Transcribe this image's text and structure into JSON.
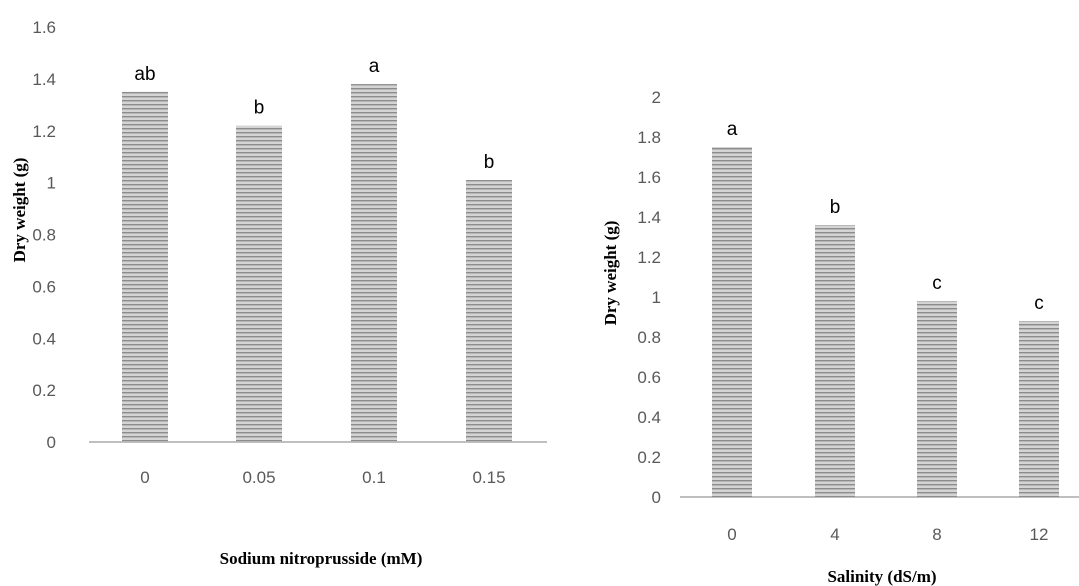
{
  "colors": {
    "bar_fill": "#d4d4d4",
    "bar_stripe": "#8c8c8c",
    "axis": "#bfbfbf",
    "tick_text": "#595959"
  },
  "chart_data": [
    {
      "type": "bar",
      "title": "",
      "xlabel": "Sodium nitroprusside (mM)",
      "ylabel": "Dry weight (g)",
      "categories": [
        "0",
        "0.05",
        "0.1",
        "0.15"
      ],
      "values": [
        1.35,
        1.22,
        1.38,
        1.01
      ],
      "labels": [
        "ab",
        "b",
        "a",
        "b"
      ],
      "ylim": [
        0,
        1.6
      ],
      "yticks": [
        "0",
        "0.2",
        "0.4",
        "0.6",
        "0.8",
        "1",
        "1.2",
        "1.4",
        "1.6"
      ],
      "grid": false,
      "legend": "none"
    },
    {
      "type": "bar",
      "title": "",
      "xlabel": "Salinity (dS/m)",
      "ylabel": "Dry weight (g)",
      "categories": [
        "0",
        "4",
        "8",
        "12"
      ],
      "values": [
        1.75,
        1.36,
        0.98,
        0.88
      ],
      "labels": [
        "a",
        "b",
        "c",
        "c"
      ],
      "ylim": [
        0,
        2
      ],
      "yticks": [
        "0",
        "0.2",
        "0.4",
        "0.6",
        "0.8",
        "1",
        "1.2",
        "1.4",
        "1.6",
        "1.8",
        "2"
      ],
      "grid": false,
      "legend": "none"
    }
  ]
}
